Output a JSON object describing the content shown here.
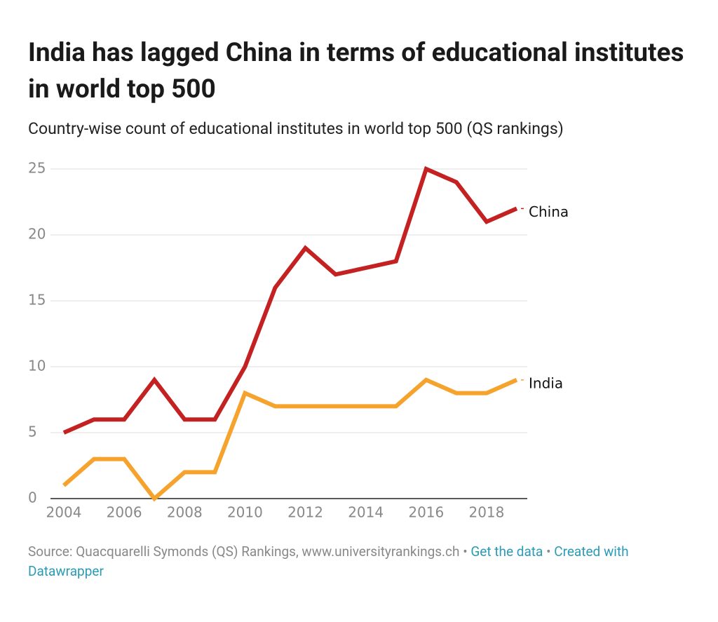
{
  "chart_data": {
    "type": "line",
    "title": "India has lagged China in terms of educational institutes in world top 500",
    "subtitle": "Country-wise count of educational institutes in world top 500 (QS rankings)",
    "x": [
      2004,
      2005,
      2006,
      2007,
      2008,
      2009,
      2010,
      2011,
      2012,
      2013,
      2014,
      2015,
      2016,
      2017,
      2018,
      2019
    ],
    "series": [
      {
        "name": "China",
        "color": "#c42222",
        "values": [
          5,
          6,
          6,
          9,
          6,
          6,
          10,
          16,
          19,
          17,
          17.5,
          18,
          25,
          24,
          21,
          22
        ]
      },
      {
        "name": "India",
        "color": "#f5a32d",
        "values": [
          1,
          3,
          3,
          0,
          2,
          2,
          8,
          7,
          7,
          7,
          7,
          7,
          9,
          8,
          8,
          9
        ]
      }
    ],
    "xlim": [
      2004,
      2019
    ],
    "xticks": [
      2004,
      2006,
      2008,
      2010,
      2012,
      2014,
      2016,
      2018
    ],
    "ylim": [
      0,
      25
    ],
    "yticks": [
      0,
      5,
      10,
      15,
      20,
      25
    ],
    "grid": true,
    "source": "Source: Quacquarelli Symonds (QS) Rankings, www.universityrankings.ch",
    "separator": "•",
    "get_data": "Get the data",
    "created_with": "Created with Datawrapper"
  }
}
